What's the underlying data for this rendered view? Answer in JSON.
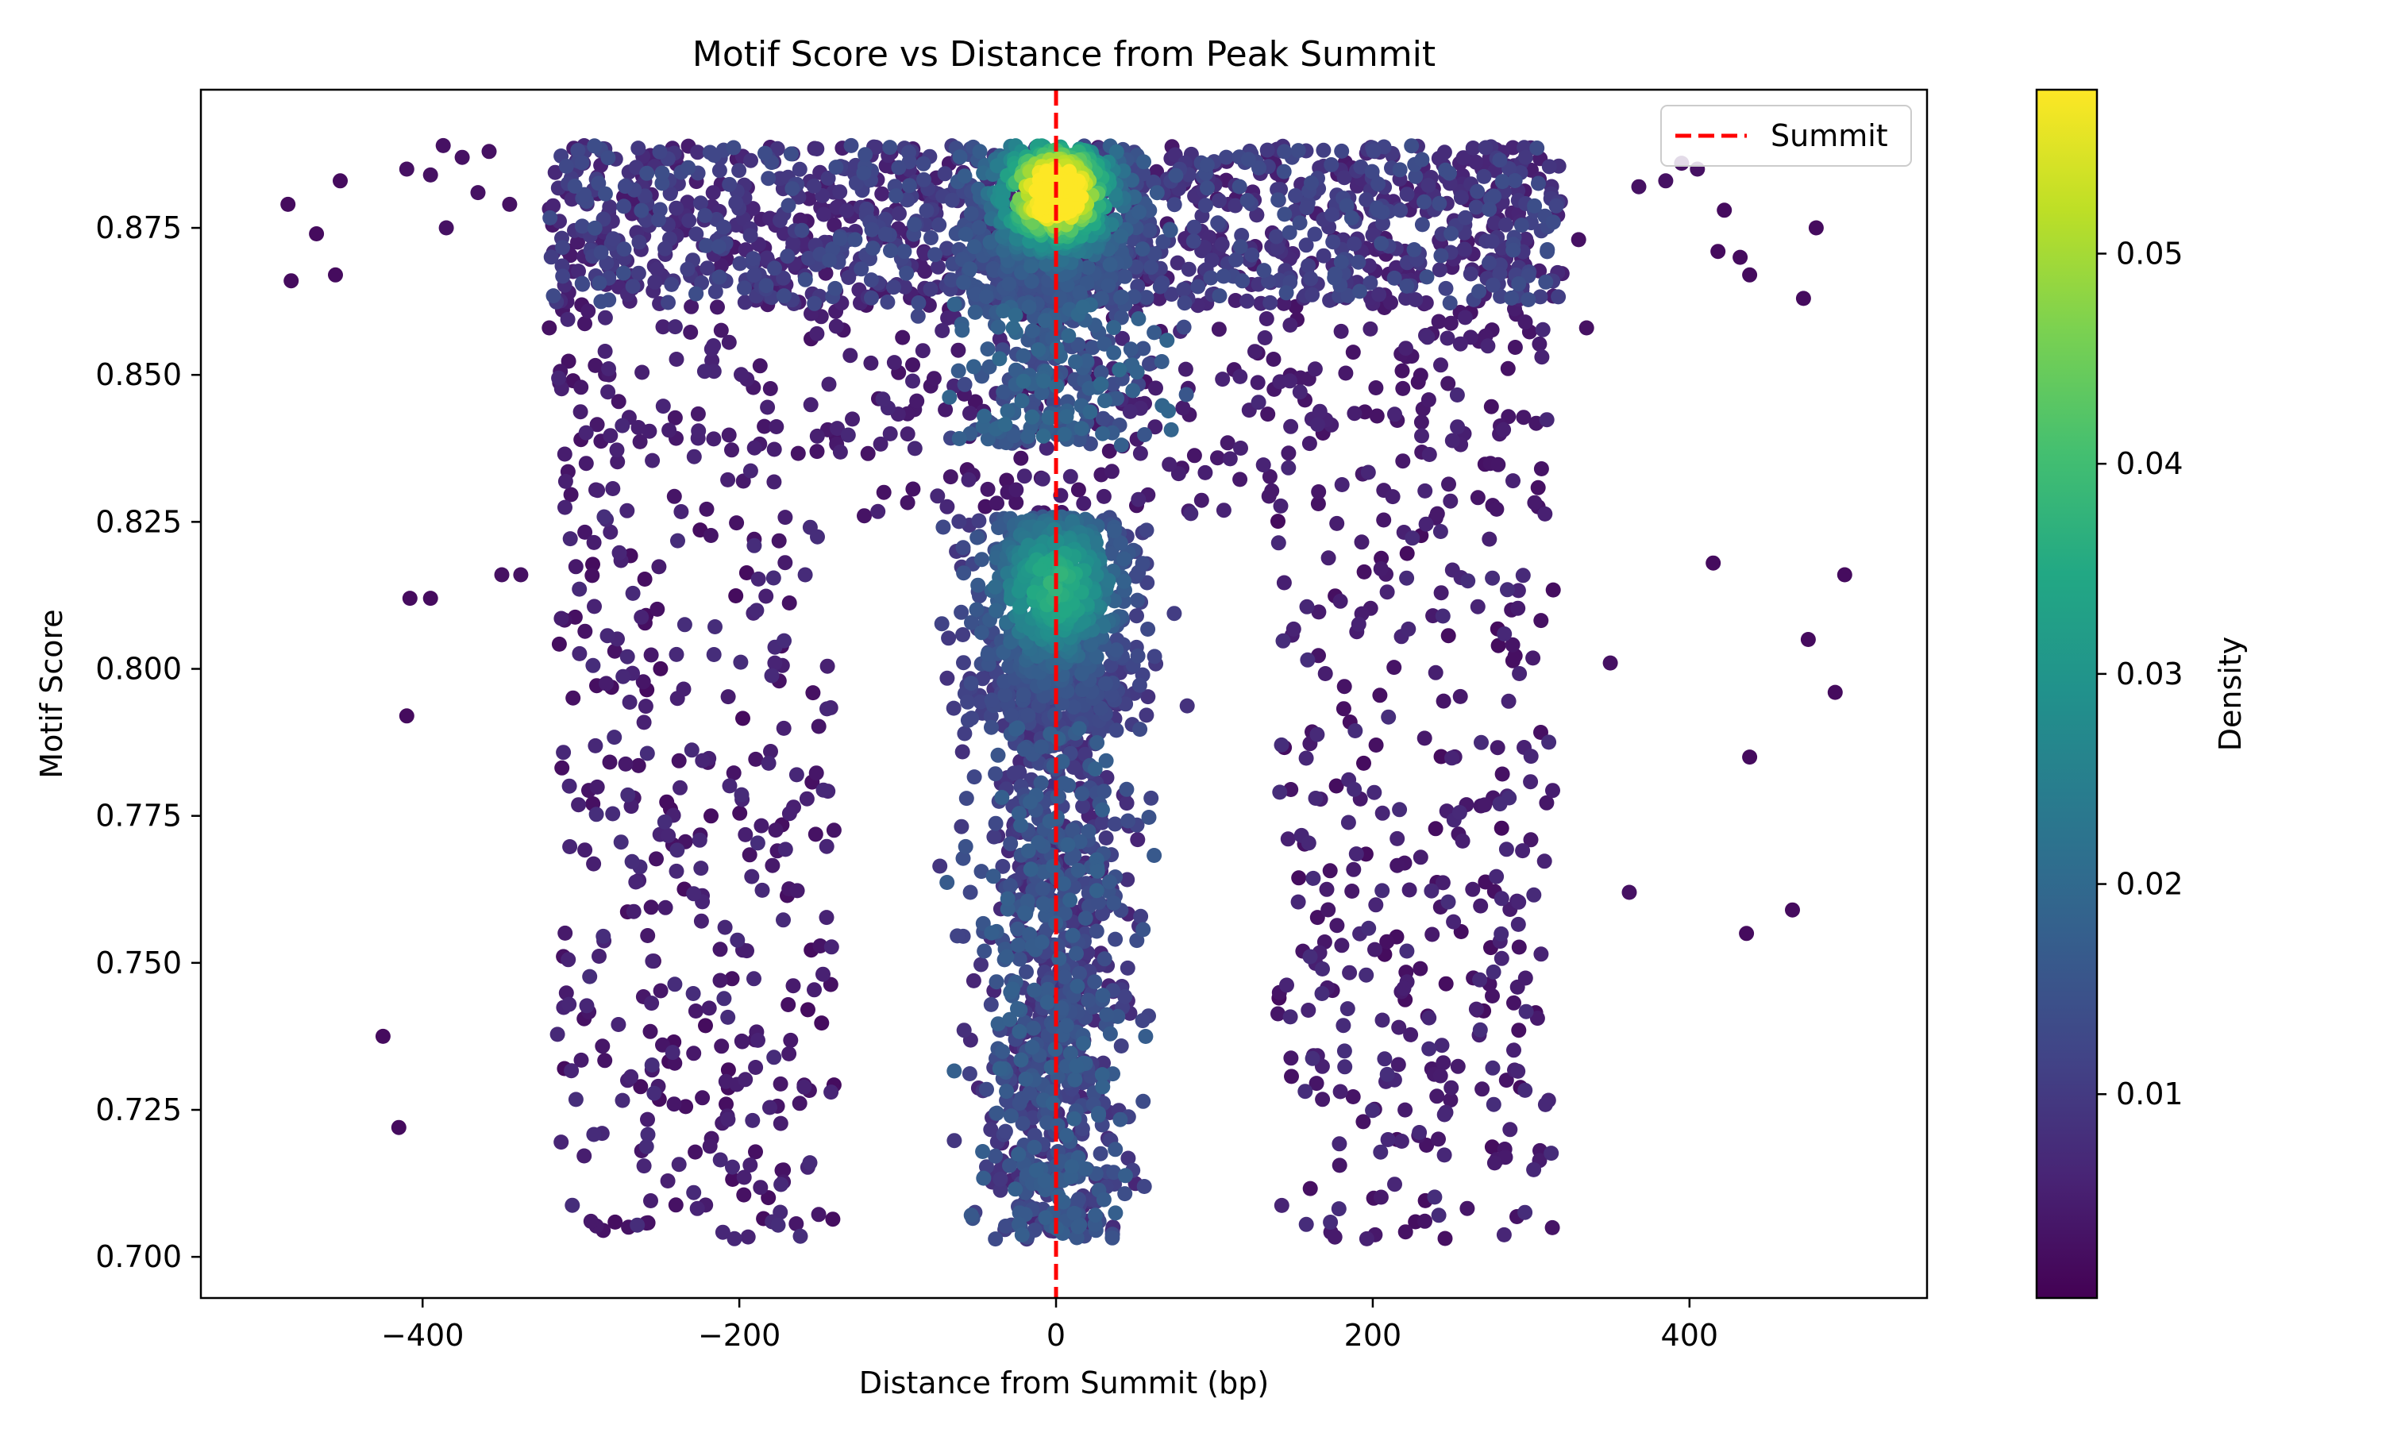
{
  "chart_data": {
    "type": "scatter",
    "title": "Motif Score vs Distance from Peak Summit",
    "xlabel": "Distance from Summit (bp)",
    "ylabel": "Motif Score",
    "xlim": [
      -540,
      550
    ],
    "ylim": [
      0.693,
      0.8985
    ],
    "xticks": [
      -400,
      -200,
      0,
      200,
      400
    ],
    "xtick_labels": [
      "−400",
      "−200",
      "0",
      "200",
      "400"
    ],
    "yticks": [
      0.7,
      0.725,
      0.75,
      0.775,
      0.8,
      0.825,
      0.85,
      0.875
    ],
    "ytick_labels": [
      "0.700",
      "0.725",
      "0.750",
      "0.775",
      "0.800",
      "0.825",
      "0.850",
      "0.875"
    ],
    "grid": false,
    "legend": {
      "position": "top-right",
      "entries": [
        {
          "label": "Summit",
          "style": "dashed",
          "color": "#ff0000"
        }
      ]
    },
    "reference_line": {
      "name": "Summit",
      "x": 0,
      "color": "#ff0000",
      "style": "dashed"
    },
    "colorbar": {
      "label": "Density",
      "colormap": "viridis",
      "range": [
        0.0003,
        0.0578
      ],
      "ticks": [
        0.01,
        0.02,
        0.03,
        0.04,
        0.05
      ],
      "tick_labels": [
        "0.01",
        "0.02",
        "0.03",
        "0.04",
        "0.05"
      ]
    },
    "series": [
      {
        "points": [
          [
            -485,
            0.879,
            0.002
          ],
          [
            -483,
            0.866,
            0.002
          ],
          [
            -467,
            0.874,
            0.002
          ],
          [
            -452,
            0.883,
            0.002
          ],
          [
            -455,
            0.867,
            0.002
          ],
          [
            -425,
            0.7375,
            0.002
          ],
          [
            -415,
            0.722,
            0.002
          ],
          [
            -410,
            0.792,
            0.002
          ],
          [
            -408,
            0.812,
            0.002
          ],
          [
            -395,
            0.812,
            0.002
          ],
          [
            -387,
            0.889,
            0.003
          ],
          [
            -375,
            0.887,
            0.003
          ],
          [
            -385,
            0.875,
            0.003
          ],
          [
            -358,
            0.888,
            0.003
          ],
          [
            -345,
            0.879,
            0.003
          ],
          [
            -350,
            0.816,
            0.003
          ],
          [
            -338,
            0.816,
            0.003
          ],
          [
            -410,
            0.885,
            0.003
          ],
          [
            -395,
            0.884,
            0.003
          ],
          [
            -365,
            0.881,
            0.003
          ],
          [
            415,
            0.818,
            0.002
          ],
          [
            422,
            0.878,
            0.002
          ],
          [
            418,
            0.871,
            0.002
          ],
          [
            432,
            0.87,
            0.002
          ],
          [
            438,
            0.867,
            0.002
          ],
          [
            436,
            0.755,
            0.002
          ],
          [
            438,
            0.785,
            0.002
          ],
          [
            465,
            0.759,
            0.002
          ],
          [
            472,
            0.863,
            0.002
          ],
          [
            475,
            0.805,
            0.002
          ],
          [
            480,
            0.875,
            0.002
          ],
          [
            492,
            0.796,
            0.002
          ],
          [
            498,
            0.816,
            0.002
          ],
          [
            350,
            0.801,
            0.003
          ],
          [
            362,
            0.762,
            0.003
          ],
          [
            368,
            0.882,
            0.003
          ],
          [
            385,
            0.883,
            0.003
          ],
          [
            395,
            0.886,
            0.003
          ],
          [
            405,
            0.885,
            0.003
          ],
          [
            -298,
            0.7405,
            0.003
          ],
          [
            -305,
            0.849,
            0.003
          ],
          [
            -300,
            0.839,
            0.003
          ],
          [
            -320,
            0.858,
            0.003
          ],
          [
            335,
            0.858,
            0.003
          ],
          [
            330,
            0.873,
            0.003
          ]
        ]
      }
    ]
  }
}
